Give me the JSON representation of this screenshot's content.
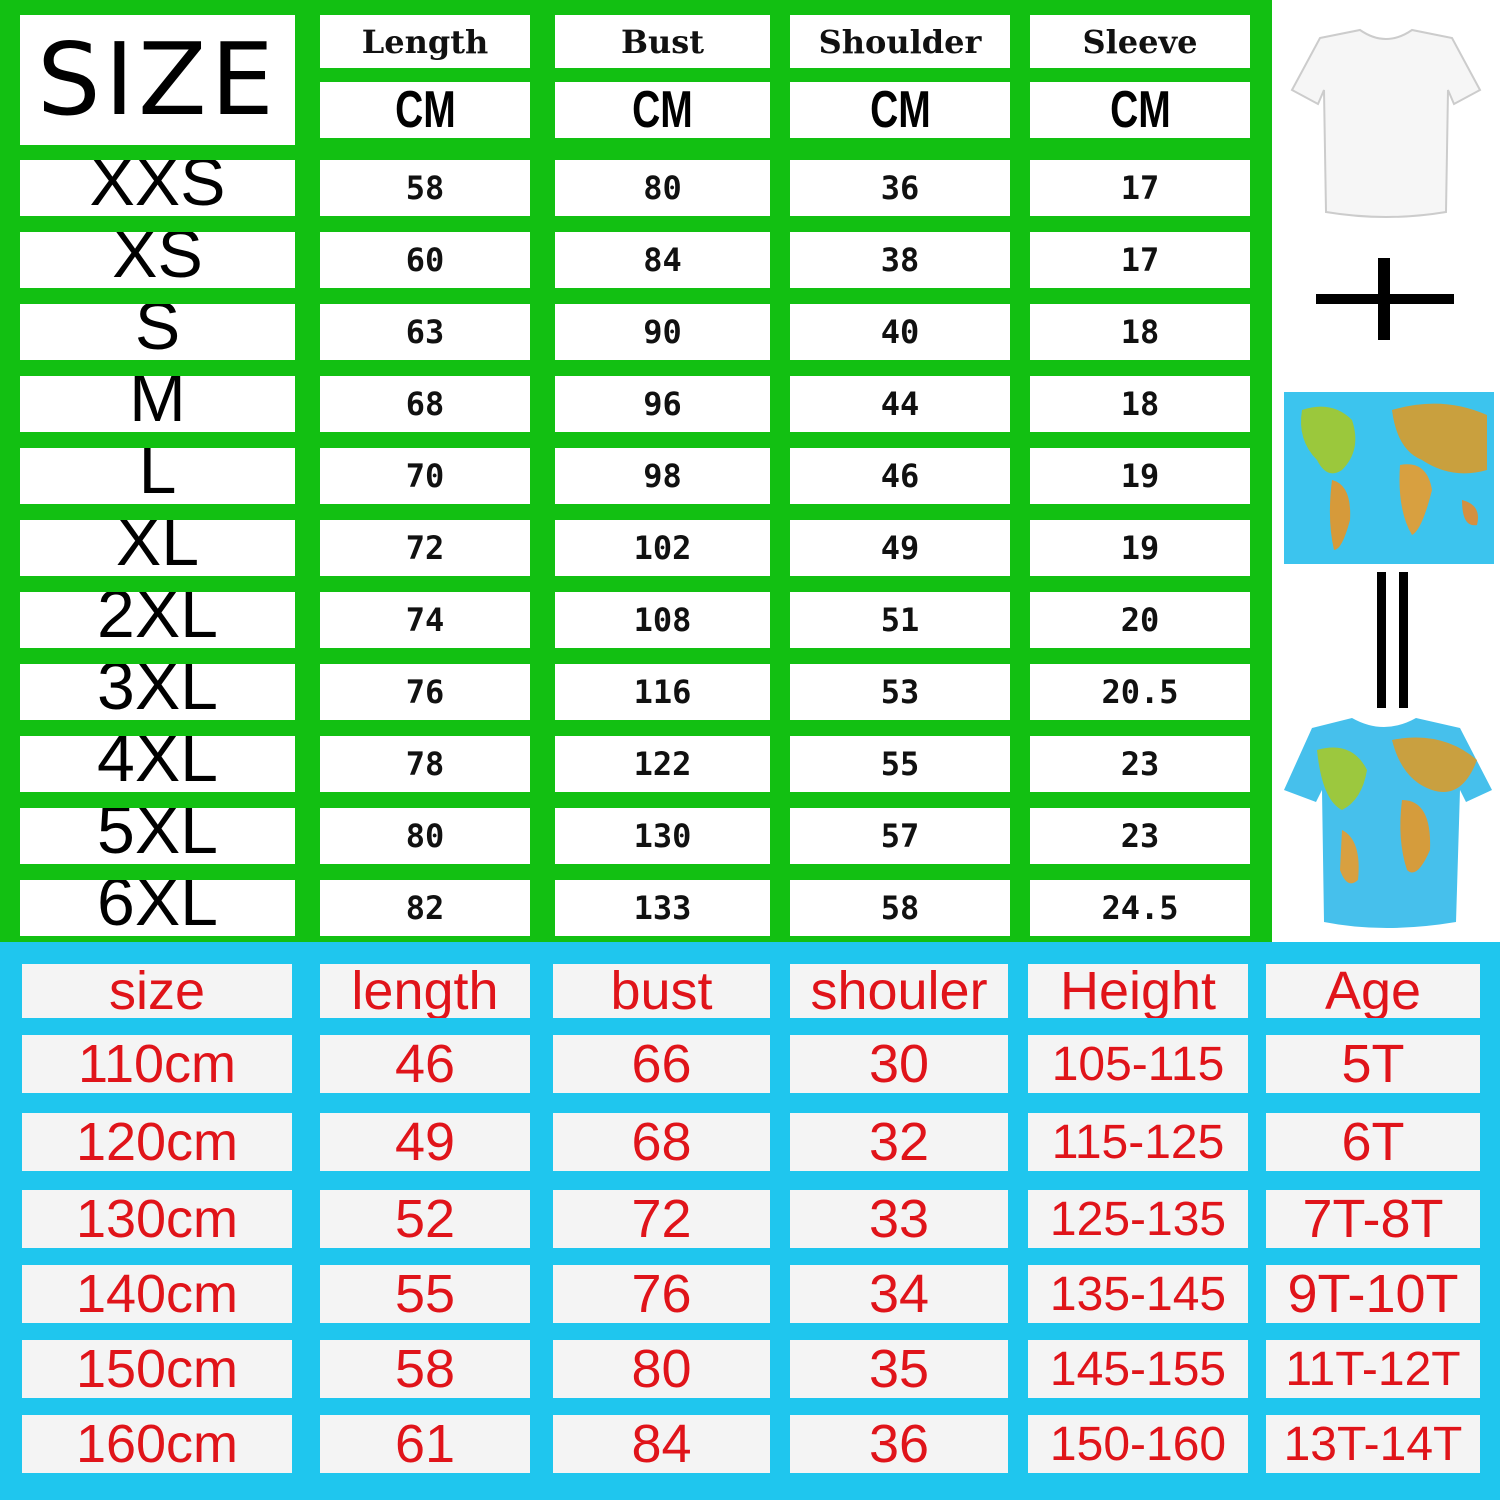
{
  "colors": {
    "adult_bg": "#12c012",
    "kids_bg": "#1fc6ee",
    "kids_text": "#e0141a"
  },
  "adult": {
    "corner_label": "SIZE",
    "headers": [
      "Length",
      "Bust",
      "Shoulder",
      "Sleeve"
    ],
    "unit": "CM",
    "rows": [
      {
        "size": "XXS",
        "values": [
          "58",
          "80",
          "36",
          "17"
        ]
      },
      {
        "size": "XS",
        "values": [
          "60",
          "84",
          "38",
          "17"
        ]
      },
      {
        "size": "S",
        "values": [
          "63",
          "90",
          "40",
          "18"
        ]
      },
      {
        "size": "M",
        "values": [
          "68",
          "96",
          "44",
          "18"
        ]
      },
      {
        "size": "L",
        "values": [
          "70",
          "98",
          "46",
          "19"
        ]
      },
      {
        "size": "XL",
        "values": [
          "72",
          "102",
          "49",
          "19"
        ]
      },
      {
        "size": "2XL",
        "values": [
          "74",
          "108",
          "51",
          "20"
        ]
      },
      {
        "size": "3XL",
        "values": [
          "76",
          "116",
          "53",
          "20.5"
        ]
      },
      {
        "size": "4XL",
        "values": [
          "78",
          "122",
          "55",
          "23"
        ]
      },
      {
        "size": "5XL",
        "values": [
          "80",
          "130",
          "57",
          "23"
        ]
      },
      {
        "size": "6XL",
        "values": [
          "82",
          "133",
          "58",
          "24.5"
        ]
      }
    ]
  },
  "kids": {
    "headers": [
      "size",
      "length",
      "bust",
      "shouler",
      "Height",
      "Age"
    ],
    "rows": [
      [
        "110cm",
        "46",
        "66",
        "30",
        "105-115",
        "5T"
      ],
      [
        "120cm",
        "49",
        "68",
        "32",
        "115-125",
        "6T"
      ],
      [
        "130cm",
        "52",
        "72",
        "33",
        "125-135",
        "7T-8T"
      ],
      [
        "140cm",
        "55",
        "76",
        "34",
        "135-145",
        "9T-10T"
      ],
      [
        "150cm",
        "58",
        "80",
        "35",
        "145-155",
        "11T-12T"
      ],
      [
        "160cm",
        "61",
        "84",
        "36",
        "150-160",
        "13T-14T"
      ]
    ]
  },
  "illustration": {
    "items": [
      "white-tshirt",
      "plus",
      "world-map",
      "equals",
      "world-map-tshirt"
    ]
  }
}
